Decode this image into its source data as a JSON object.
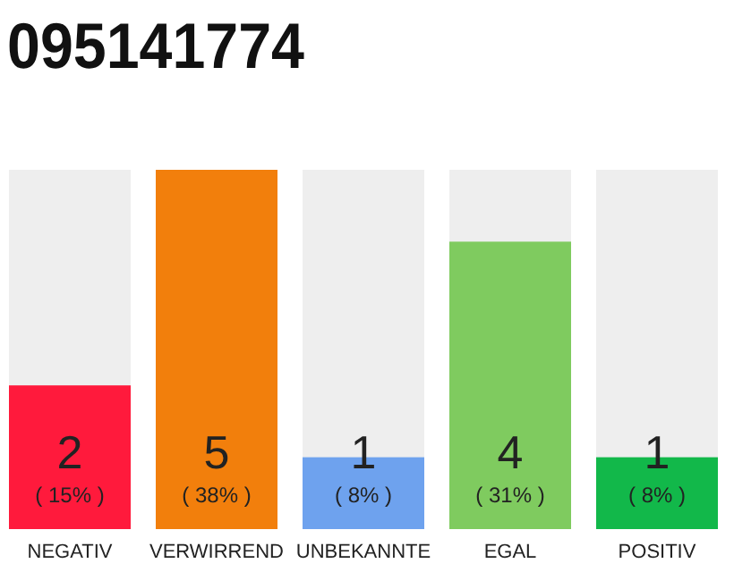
{
  "chart_data": {
    "type": "bar",
    "title": "095141774",
    "categories": [
      "NEGATIV",
      "VERWIRREND",
      "UNBEKANNTE",
      "EGAL",
      "POSITIV"
    ],
    "values": [
      2,
      5,
      1,
      4,
      1
    ],
    "colors": [
      "#ff1a3c",
      "#f27f0c",
      "#6ea2ee",
      "#7fcb5f",
      "#12b84a"
    ],
    "value_labels": [
      "2\n( 15% )",
      "5\n( 38% )",
      "1\n( 8% )",
      "4\n( 31% )",
      "1\n( 8% )"
    ]
  }
}
